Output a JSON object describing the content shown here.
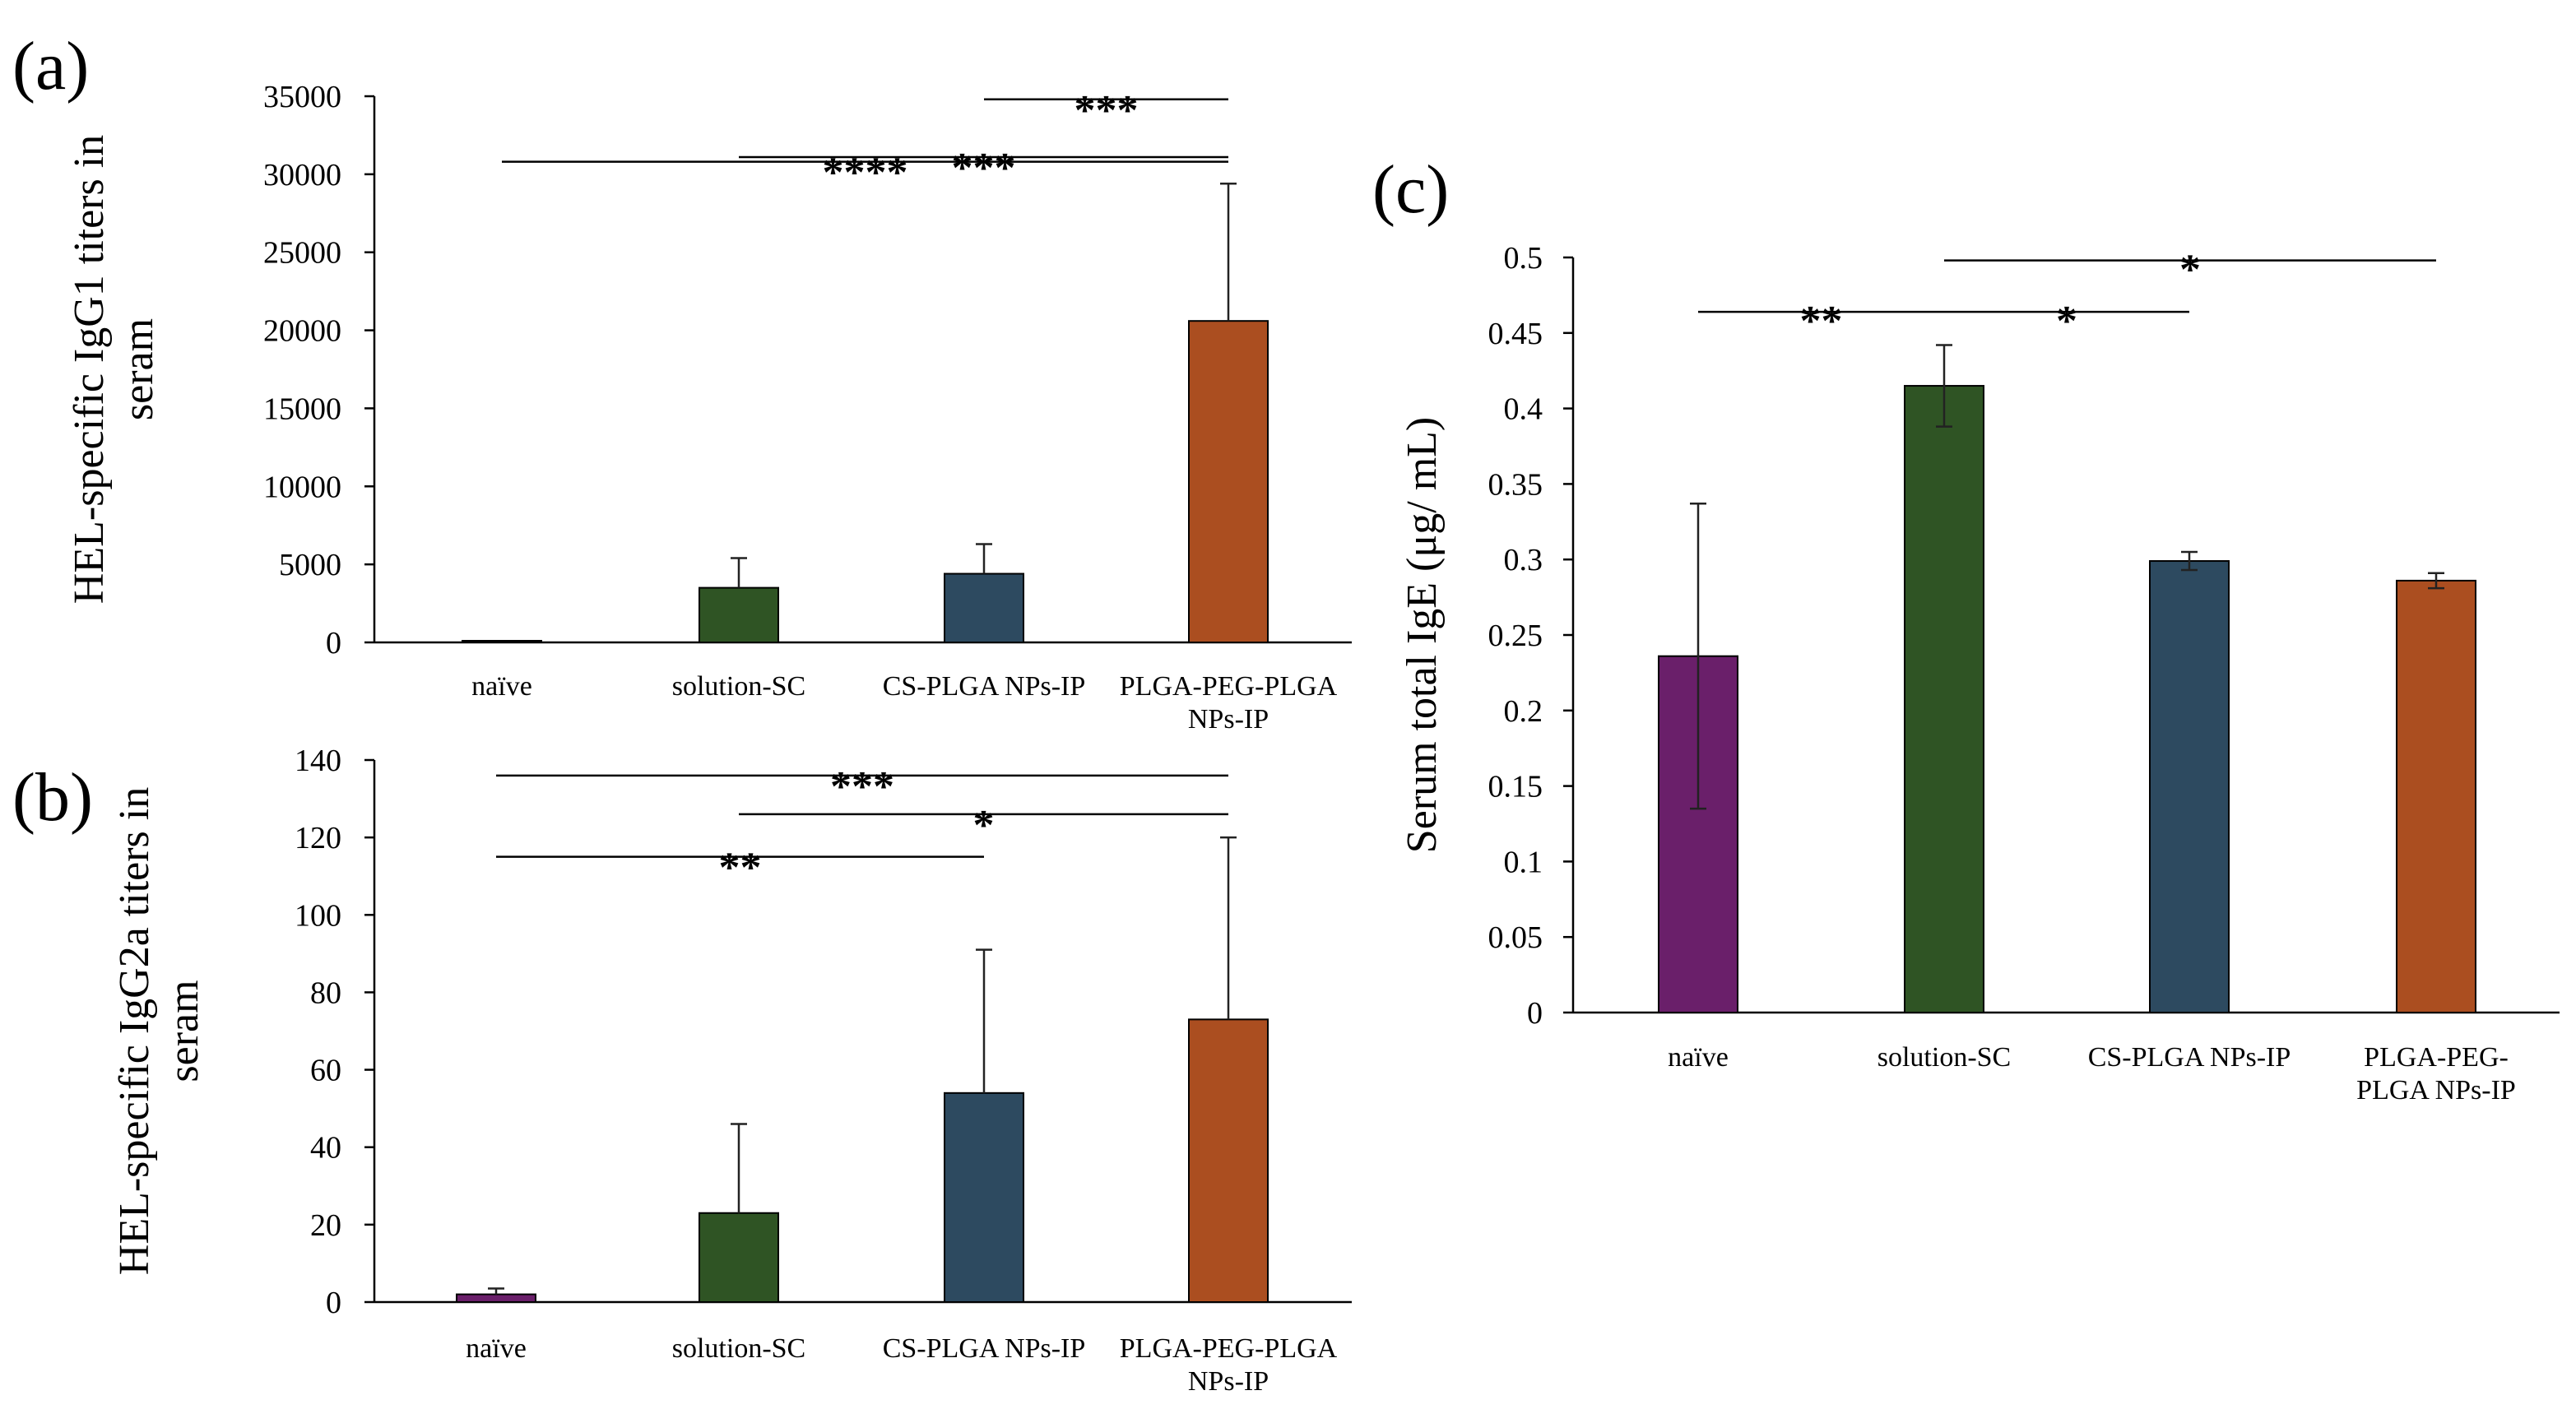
{
  "chart_data": [
    {
      "panel_label": "(a)",
      "type": "bar",
      "title": "",
      "xlabel": "",
      "ylabel_lines": [
        "HEL-specific IgG1 titers in",
        "seram"
      ],
      "ylim": [
        0,
        35000
      ],
      "yticks": [
        0,
        5000,
        10000,
        15000,
        20000,
        25000,
        30000,
        35000
      ],
      "ytick_labels": [
        "0",
        "5000",
        "10000",
        "15000",
        "20000",
        "25000",
        "30000",
        "35000"
      ],
      "grid": false,
      "categories": [
        [
          "naïve"
        ],
        [
          "solution-SC"
        ],
        [
          "CS-PLGA NPs-IP"
        ],
        [
          "PLGA-PEG-PLGA",
          "NPs-IP"
        ]
      ],
      "values": [
        30,
        3500,
        4400,
        20600
      ],
      "error_plus": [
        0,
        1900,
        1900,
        8800
      ],
      "error_minus": [
        0,
        0,
        0,
        0
      ],
      "colors": [
        "#6a1f6a",
        "#2f5424",
        "#2d4a60",
        "#ab4e20"
      ],
      "significance": [
        {
          "from": 1,
          "to": 3,
          "label": "***",
          "y": 31100
        },
        {
          "from": 0,
          "to": 3,
          "label": "****",
          "y": 30800
        },
        {
          "from": 2,
          "to": 3,
          "label": "***",
          "y": 34800
        }
      ]
    },
    {
      "panel_label": "(b)",
      "type": "bar",
      "title": "",
      "xlabel": "",
      "ylabel_lines": [
        "HEL-specific IgG2a titers in",
        "seram"
      ],
      "ylim": [
        0,
        140
      ],
      "yticks": [
        0,
        20,
        40,
        60,
        80,
        100,
        120,
        140
      ],
      "ytick_labels": [
        "0",
        "20",
        "40",
        "60",
        "80",
        "100",
        "120",
        "140"
      ],
      "grid": false,
      "categories": [
        [
          "naïve"
        ],
        [
          "solution-SC"
        ],
        [
          "CS-PLGA NPs-IP"
        ],
        [
          "PLGA-PEG-PLGA",
          "NPs-IP"
        ]
      ],
      "values": [
        2,
        23,
        54,
        73
      ],
      "error_plus": [
        1.5,
        23,
        37,
        47
      ],
      "error_minus": [
        0,
        0,
        0,
        0
      ],
      "colors": [
        "#6a1f6a",
        "#2f5424",
        "#2d4a60",
        "#ab4e20"
      ],
      "significance": [
        {
          "from": 0,
          "to": 3,
          "label": "***",
          "y": 136
        },
        {
          "from": 1,
          "to": 3,
          "label": "*",
          "y": 126
        },
        {
          "from": 0,
          "to": 2,
          "label": "**",
          "y": 115
        }
      ]
    },
    {
      "panel_label": "(c)",
      "type": "bar",
      "title": "",
      "xlabel": "",
      "ylabel_lines": [
        "Serum total IgE (μg/ mL)"
      ],
      "ylim": [
        0,
        0.5
      ],
      "yticks": [
        0,
        0.05,
        0.1,
        0.15,
        0.2,
        0.25,
        0.3,
        0.35,
        0.4,
        0.45,
        0.5
      ],
      "ytick_labels": [
        "0",
        "0.05",
        "0.1",
        "0.15",
        "0.2",
        "0.25",
        "0.3",
        "0.35",
        "0.4",
        "0.45",
        "0.5"
      ],
      "grid": false,
      "categories": [
        [
          "naïve"
        ],
        [
          "solution-SC"
        ],
        [
          "CS-PLGA NPs-IP"
        ],
        [
          "PLGA-PEG-",
          "PLGA NPs-IP"
        ]
      ],
      "values": [
        0.236,
        0.415,
        0.299,
        0.286
      ],
      "error_plus": [
        0.101,
        0.027,
        0.006,
        0.005
      ],
      "error_minus": [
        0.101,
        0.027,
        0.006,
        0.005
      ],
      "colors": [
        "#6a1f6a",
        "#2f5424",
        "#2d4a60",
        "#ab4e20"
      ],
      "significance": [
        {
          "from": 0,
          "to": 1,
          "label": "**",
          "y": 0.464
        },
        {
          "from": 1,
          "to": 2,
          "label": "*",
          "y": 0.464
        },
        {
          "from": 1,
          "to": 3,
          "label": "*",
          "y": 0.498
        }
      ]
    }
  ]
}
